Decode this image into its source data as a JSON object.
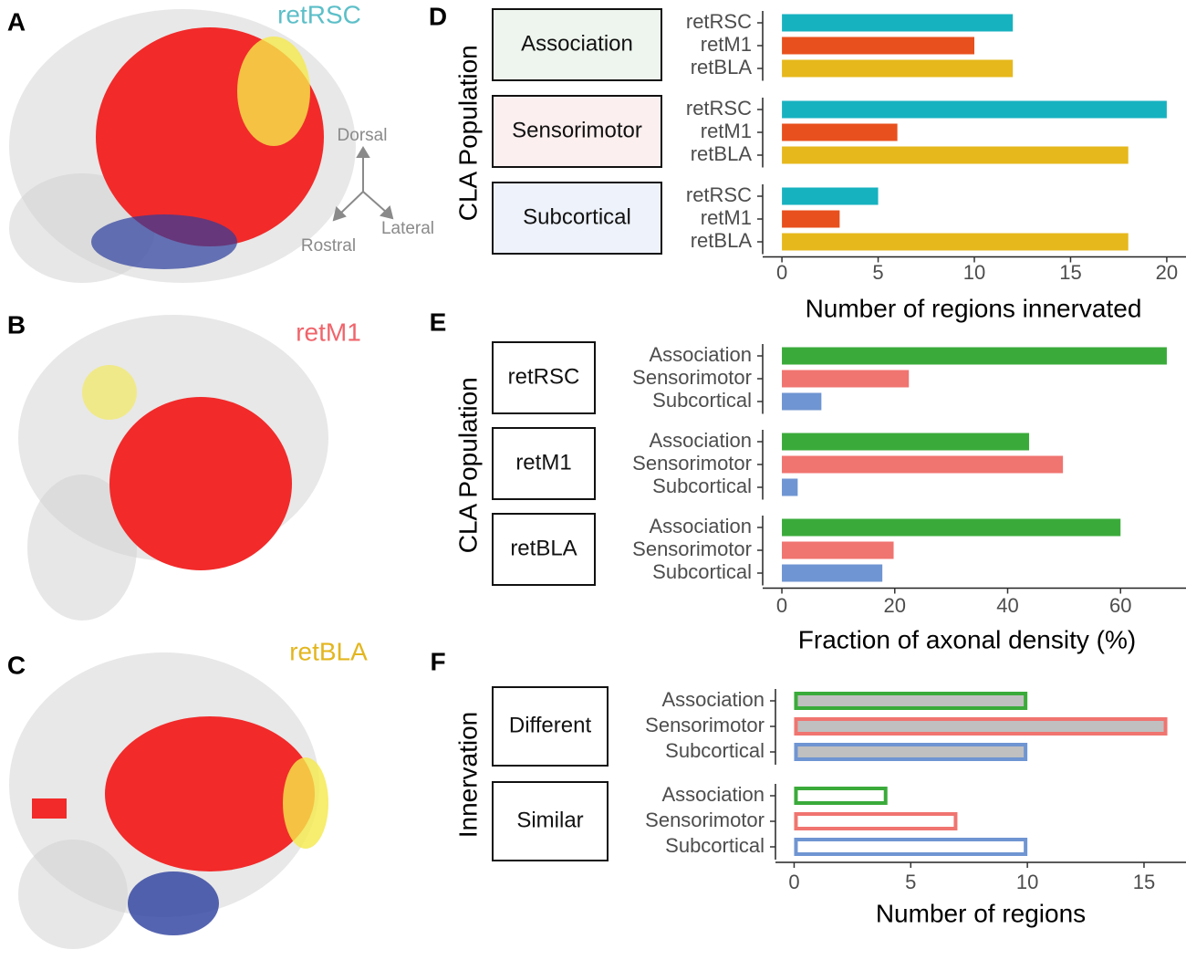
{
  "figure_panels": [
    {
      "letter": "A",
      "label": "retRSC",
      "color": "#5cbfc8"
    },
    {
      "letter": "B",
      "label": "retM1",
      "color": "#f0646b"
    },
    {
      "letter": "C",
      "label": "retBLA",
      "color": "#e3b61e"
    }
  ],
  "orientation": {
    "dorsal": "Dorsal",
    "lateral": "Lateral",
    "rostral": "Rostral"
  },
  "chart_data": [
    {
      "type": "bar",
      "panel": "D",
      "orientation": "horizontal",
      "xlabel": "Number of regions innervated",
      "ylabel": "CLA Population",
      "categories": [
        "Association",
        "Sensorimotor",
        "Subcortical"
      ],
      "series": [
        {
          "name": "retRSC",
          "color": "#17b2c0",
          "values": [
            12,
            20,
            5
          ]
        },
        {
          "name": "retM1",
          "color": "#e8501e",
          "values": [
            10,
            6,
            3
          ]
        },
        {
          "name": "retBLA",
          "color": "#e6b81c",
          "values": [
            12,
            18,
            18
          ]
        }
      ],
      "xlim": [
        -1,
        21
      ],
      "xticks": [
        0,
        5,
        10,
        15,
        20
      ]
    },
    {
      "type": "bar",
      "panel": "E",
      "orientation": "horizontal",
      "xlabel": "Fraction of axonal density (%)",
      "ylabel": "CLA Population",
      "categories": [
        "retRSC",
        "retM1",
        "retBLA"
      ],
      "series": [
        {
          "name": "Association",
          "color": "#3aab3a",
          "values": [
            68.2,
            43.8,
            60
          ]
        },
        {
          "name": "Sensorimotor",
          "color": "#f07470",
          "values": [
            22.5,
            49.8,
            19.8
          ]
        },
        {
          "name": "Subcortical",
          "color": "#6f95d2",
          "values": [
            7,
            2.8,
            17.8
          ]
        }
      ],
      "xlim": [
        -3.4,
        71.6
      ],
      "xticks": [
        0,
        20,
        40,
        60
      ]
    },
    {
      "type": "bar",
      "panel": "F",
      "orientation": "horizontal",
      "xlabel": "Number of regions",
      "ylabel": "Innervation",
      "categories": [
        "Different",
        "Similar"
      ],
      "facet_fills": [
        "#c0c0c0",
        "#ffffff"
      ],
      "series": [
        {
          "name": "Association",
          "color": "#3aab3a",
          "values": [
            10,
            4
          ]
        },
        {
          "name": "Sensorimotor",
          "color": "#f07470",
          "values": [
            16,
            7
          ]
        },
        {
          "name": "Subcortical",
          "color": "#6f95d2",
          "values": [
            10,
            10
          ]
        }
      ],
      "xlim": [
        -0.8,
        16.8
      ],
      "xticks": [
        0,
        5,
        10,
        15
      ]
    }
  ]
}
